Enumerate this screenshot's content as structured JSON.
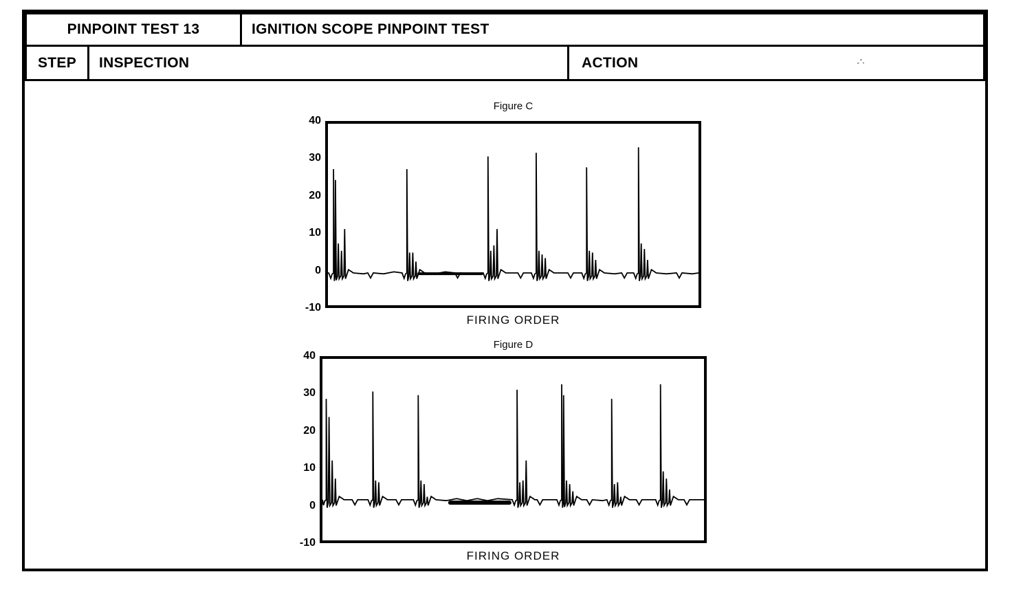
{
  "header": {
    "test_label": "PINPOINT TEST 13",
    "test_title": "IGNITION SCOPE PINPOINT TEST",
    "col_step": "STEP",
    "col_inspection": "INSPECTION",
    "col_action": "ACTION"
  },
  "chart_data": [
    {
      "type": "line",
      "title": "Figure C",
      "xlabel": "FIRING ORDER",
      "ylabel": "",
      "ylim": [
        -10,
        40
      ],
      "yticks": [
        "40",
        "30",
        "20",
        "10",
        "0",
        "-10"
      ],
      "grid": false,
      "legend": false,
      "baseline": -1.1,
      "events": [
        {
          "x": 0.015,
          "peak": 27.5,
          "double": true,
          "tails": [
            7,
            5,
            11
          ]
        },
        {
          "x": 0.213,
          "peak": 27.5,
          "tails": [
            4.5,
            4.5,
            2
          ]
        },
        {
          "x": 0.432,
          "peak": 31,
          "tails": [
            5,
            6.5,
            11
          ]
        },
        {
          "x": 0.562,
          "peak": 32,
          "tails": [
            5,
            4,
            3
          ]
        },
        {
          "x": 0.698,
          "peak": 28,
          "tails": [
            5,
            4.5,
            2.5
          ]
        },
        {
          "x": 0.838,
          "peak": 33.5,
          "tails": [
            7,
            5.5,
            2.5
          ]
        }
      ],
      "notches": [
        0.115,
        0.35,
        0.52,
        0.655,
        0.8,
        0.948
      ],
      "thick_segments": [
        {
          "x1": 0.245,
          "x2": 0.415,
          "level": -1.3,
          "width": 4
        }
      ]
    },
    {
      "type": "line",
      "title": "Figure D",
      "xlabel": "FIRING ORDER",
      "ylabel": "",
      "ylim": [
        -10,
        40
      ],
      "yticks": [
        "40",
        "30",
        "20",
        "10",
        "0",
        "-10"
      ],
      "grid": false,
      "legend": false,
      "baseline": 1.2,
      "events": [
        {
          "x": 0.01,
          "peak": 29,
          "tails": [
            24,
            12,
            7
          ]
        },
        {
          "x": 0.132,
          "peak": 31,
          "tails": [
            6.5,
            6
          ]
        },
        {
          "x": 0.251,
          "peak": 30,
          "tails": [
            6.5,
            5.5,
            2
          ]
        },
        {
          "x": 0.51,
          "peak": 31.5,
          "tails": [
            6,
            6.5,
            12
          ]
        },
        {
          "x": 0.627,
          "peak": 33,
          "double": true,
          "tails": [
            6.5,
            5.5,
            3.5
          ]
        },
        {
          "x": 0.758,
          "peak": 29,
          "tails": [
            5.5,
            6,
            2
          ]
        },
        {
          "x": 0.886,
          "peak": 33,
          "tails": [
            9,
            7,
            4
          ]
        }
      ],
      "notches": [
        0.085,
        0.2,
        0.57,
        0.7,
        0.83,
        0.955
      ],
      "thick_segments": [
        {
          "x1": 0.335,
          "x2": 0.49,
          "level": 0.4,
          "width": 6
        }
      ]
    }
  ]
}
